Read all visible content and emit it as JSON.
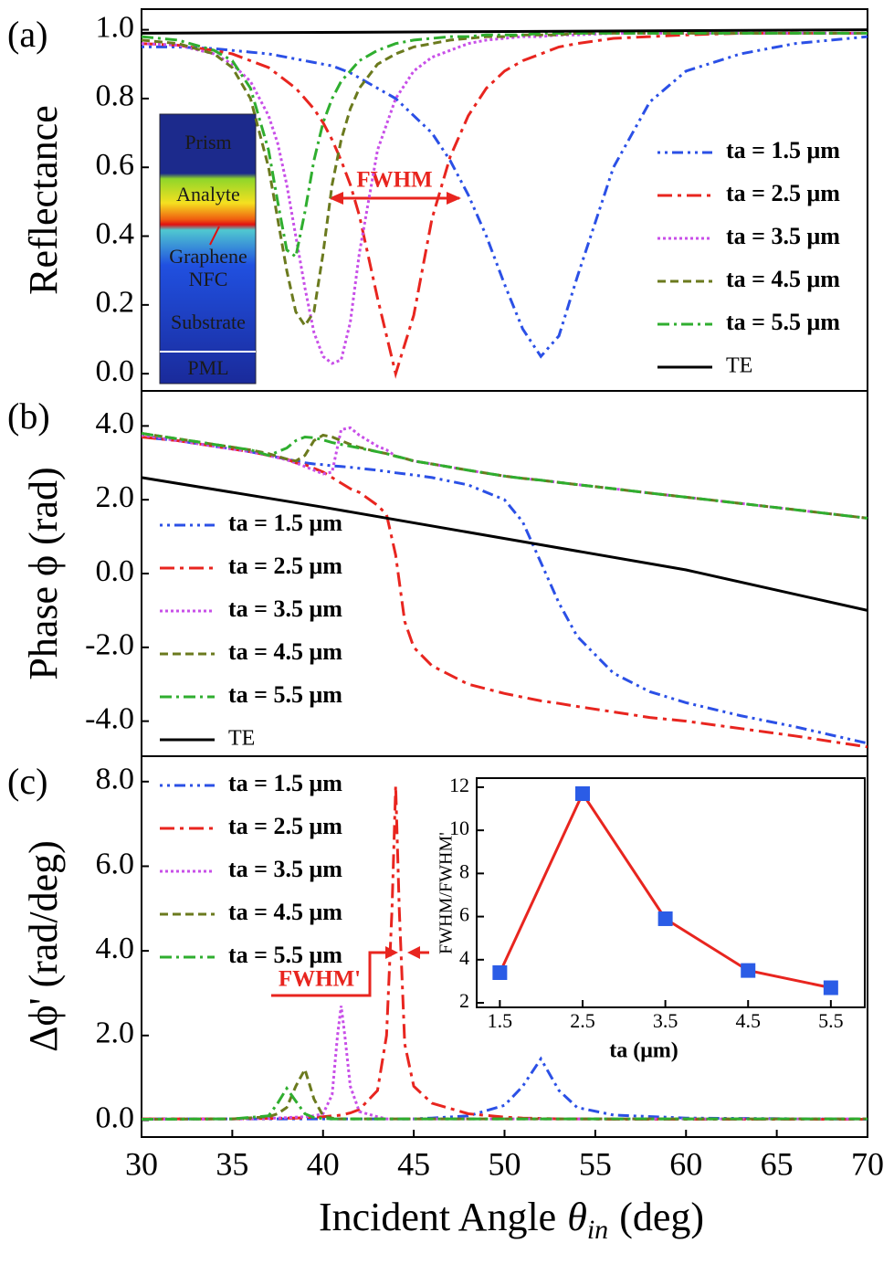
{
  "chart_data": [
    {
      "type": "line",
      "label": "(a)",
      "ylabel": "Reflectance",
      "legend": "right",
      "xlim": [
        30,
        70
      ],
      "ylim": [
        -0.05,
        1.06
      ],
      "yticks": [
        {
          "value": 0,
          "label": "0.0"
        },
        0.2,
        0.4,
        0.6,
        0.8,
        {
          "value": 1,
          "label": "1.0"
        }
      ],
      "annotations": [
        "FWHM"
      ],
      "layers": [
        "Prism",
        "Analyte",
        "Graphene",
        "NFC",
        "Substrate",
        "PML"
      ],
      "x": [
        30,
        32,
        34,
        35,
        36,
        37,
        37.5,
        38,
        38.5,
        39,
        39.5,
        40,
        40.5,
        41,
        41.5,
        42,
        43,
        44,
        45,
        46,
        47,
        48,
        49,
        50,
        51,
        52,
        53,
        54,
        56,
        58,
        60,
        63,
        66,
        70
      ],
      "series": [
        {
          "name": "ta = 1.5 μm",
          "color": "#2b50e6",
          "values": [
            0.95,
            0.95,
            0.945,
            0.94,
            0.935,
            0.93,
            0.925,
            0.92,
            0.915,
            0.91,
            0.905,
            0.9,
            0.895,
            0.885,
            0.875,
            0.86,
            0.83,
            0.8,
            0.75,
            0.7,
            0.62,
            0.52,
            0.4,
            0.26,
            0.13,
            0.05,
            0.11,
            0.28,
            0.6,
            0.79,
            0.88,
            0.93,
            0.96,
            0.98
          ]
        },
        {
          "name": "ta = 2.5 μm",
          "color": "#e8251f",
          "values": [
            0.96,
            0.955,
            0.94,
            0.93,
            0.91,
            0.89,
            0.87,
            0.85,
            0.83,
            0.8,
            0.77,
            0.73,
            0.68,
            0.62,
            0.55,
            0.46,
            0.22,
            0,
            0.17,
            0.45,
            0.63,
            0.75,
            0.83,
            0.88,
            0.91,
            0.93,
            0.95,
            0.96,
            0.975,
            0.98,
            0.985,
            0.99,
            0.99,
            0.99
          ]
        },
        {
          "name": "ta = 3.5 μm",
          "color": "#c84fe8",
          "values": [
            0.96,
            0.955,
            0.93,
            0.9,
            0.85,
            0.75,
            0.67,
            0.55,
            0.4,
            0.25,
            0.12,
            0.05,
            0.03,
            0.04,
            0.15,
            0.35,
            0.65,
            0.8,
            0.88,
            0.92,
            0.94,
            0.96,
            0.97,
            0.975,
            0.98,
            0.98,
            0.985,
            0.985,
            0.99,
            0.99,
            0.99,
            0.99,
            0.99,
            0.99
          ]
        },
        {
          "name": "ta = 4.5 μm",
          "color": "#6b7a1e",
          "values": [
            0.97,
            0.96,
            0.93,
            0.89,
            0.8,
            0.6,
            0.45,
            0.3,
            0.18,
            0.14,
            0.18,
            0.35,
            0.55,
            0.68,
            0.77,
            0.83,
            0.9,
            0.93,
            0.95,
            0.96,
            0.97,
            0.975,
            0.98,
            0.98,
            0.985,
            0.985,
            0.985,
            0.99,
            0.99,
            0.99,
            0.99,
            0.99,
            0.99,
            0.99
          ]
        },
        {
          "name": "ta = 5.5 μm",
          "color": "#2fae2f",
          "values": [
            0.98,
            0.97,
            0.94,
            0.91,
            0.83,
            0.65,
            0.5,
            0.36,
            0.34,
            0.47,
            0.62,
            0.73,
            0.8,
            0.85,
            0.88,
            0.91,
            0.94,
            0.96,
            0.97,
            0.975,
            0.98,
            0.98,
            0.985,
            0.985,
            0.985,
            0.99,
            0.99,
            0.99,
            0.99,
            0.99,
            0.99,
            0.99,
            0.99,
            0.99
          ]
        },
        {
          "name": "TE",
          "color": "#000000",
          "x": [
            30,
            70
          ],
          "values": [
            0.99,
            1.0
          ]
        }
      ]
    },
    {
      "type": "line",
      "label": "(b)",
      "ylabel": "Phase ϕ (rad)",
      "legend": "left",
      "xlim": [
        30,
        70
      ],
      "ylim": [
        -4.95,
        4.95
      ],
      "yticks": [
        {
          "value": -4,
          "label": "-4.0"
        },
        {
          "value": -2,
          "label": "-2.0"
        },
        {
          "value": 0,
          "label": "0.0"
        },
        {
          "value": 2,
          "label": "2.0"
        },
        {
          "value": 4,
          "label": "4.0"
        }
      ],
      "x": [
        30,
        32,
        34,
        36,
        37,
        38,
        38.5,
        39,
        39.5,
        40,
        40.5,
        41,
        41.5,
        42,
        43,
        43.5,
        44,
        44.5,
        45,
        46,
        48,
        50,
        51,
        52,
        53,
        54,
        56,
        58,
        60,
        63,
        66,
        70
      ],
      "series": [
        {
          "name": "ta = 1.5 μm",
          "color": "#2b50e6",
          "values": [
            3.7,
            3.6,
            3.45,
            3.3,
            3.2,
            3.1,
            3.05,
            3.0,
            2.97,
            2.95,
            2.92,
            2.9,
            2.88,
            2.85,
            2.8,
            2.77,
            2.73,
            2.7,
            2.67,
            2.6,
            2.4,
            2.0,
            1.4,
            0.3,
            -0.8,
            -1.7,
            -2.7,
            -3.2,
            -3.5,
            -3.85,
            -4.15,
            -4.6
          ]
        },
        {
          "name": "ta = 2.5 μm",
          "color": "#e8251f",
          "values": [
            3.7,
            3.6,
            3.45,
            3.3,
            3.2,
            3.1,
            3.0,
            2.95,
            2.85,
            2.75,
            2.6,
            2.45,
            2.3,
            2.2,
            1.85,
            1.6,
            0.5,
            -1.3,
            -2.0,
            -2.5,
            -3.0,
            -3.25,
            -3.35,
            -3.45,
            -3.52,
            -3.6,
            -3.75,
            -3.9,
            -4.0,
            -4.2,
            -4.4,
            -4.7
          ]
        },
        {
          "name": "ta = 3.5 μm",
          "color": "#c84fe8",
          "values": [
            3.75,
            3.6,
            3.45,
            3.3,
            3.2,
            3.08,
            3.0,
            2.9,
            2.8,
            2.7,
            2.75,
            3.9,
            3.95,
            3.75,
            3.45,
            3.35,
            3.18,
            3.12,
            3.05,
            2.97,
            2.8,
            2.64,
            2.58,
            2.53,
            2.47,
            2.41,
            2.3,
            2.18,
            2.07,
            1.9,
            1.73,
            1.5
          ]
        },
        {
          "name": "ta = 4.5 μm",
          "color": "#6b7a1e",
          "values": [
            3.8,
            3.65,
            3.5,
            3.35,
            3.25,
            3.1,
            3.05,
            3.2,
            3.6,
            3.75,
            3.7,
            3.6,
            3.5,
            3.42,
            3.3,
            3.25,
            3.18,
            3.12,
            3.05,
            2.97,
            2.8,
            2.64,
            2.58,
            2.53,
            2.47,
            2.41,
            2.3,
            2.18,
            2.07,
            1.9,
            1.73,
            1.5
          ]
        },
        {
          "name": "ta = 5.5 μm",
          "color": "#2fae2f",
          "values": [
            3.8,
            3.65,
            3.5,
            3.35,
            3.2,
            3.4,
            3.6,
            3.7,
            3.68,
            3.62,
            3.55,
            3.5,
            3.45,
            3.4,
            3.3,
            3.25,
            3.18,
            3.12,
            3.05,
            2.97,
            2.8,
            2.64,
            2.58,
            2.53,
            2.47,
            2.41,
            2.3,
            2.18,
            2.07,
            1.9,
            1.73,
            1.5
          ]
        },
        {
          "name": "TE",
          "color": "#000000",
          "x": [
            30,
            40,
            50,
            60,
            70
          ],
          "values": [
            2.6,
            1.8,
            0.95,
            0.1,
            -1.0
          ]
        }
      ]
    },
    {
      "type": "line",
      "label": "(c)",
      "ylabel": "Δϕ' (rad/deg)",
      "legend": "upper left",
      "xlabel": "Incident Angle",
      "xlabel_symbol": "θ",
      "xlabel_sub": "in",
      "xlabel_unit": "(deg)",
      "annotations": [
        "FWHM'"
      ],
      "xlim": [
        30,
        70
      ],
      "xticks": [
        30,
        35,
        40,
        45,
        50,
        55,
        60,
        65,
        70
      ],
      "ylim": [
        -0.4,
        8.6
      ],
      "yticks": [
        {
          "value": 0,
          "label": "0.0"
        },
        {
          "value": 2,
          "label": "2.0"
        },
        {
          "value": 4,
          "label": "4.0"
        },
        {
          "value": 6,
          "label": "6.0"
        },
        {
          "value": 8,
          "label": "8.0"
        }
      ],
      "x": [
        30,
        35,
        37,
        37.5,
        38,
        38.5,
        39,
        39.5,
        40,
        40.5,
        40.8,
        41,
        41.2,
        41.5,
        42,
        43,
        43.5,
        43.8,
        44,
        44.2,
        44.5,
        45,
        46,
        48,
        50,
        51,
        52,
        53,
        54,
        56,
        60,
        70
      ],
      "series": [
        {
          "name": "ta = 1.5 μm",
          "color": "#2b50e6",
          "values": [
            0.03,
            0.03,
            0.03,
            0.03,
            0.03,
            0.03,
            0.03,
            0.03,
            0.03,
            0.03,
            0.03,
            0.03,
            0.03,
            0.03,
            0.03,
            0.03,
            0.03,
            0.03,
            0.03,
            0.03,
            0.03,
            0.03,
            0.05,
            0.1,
            0.35,
            0.8,
            1.45,
            0.7,
            0.3,
            0.12,
            0.05,
            0.02
          ]
        },
        {
          "name": "ta = 2.5 μm",
          "color": "#e8251f",
          "values": [
            0.03,
            0.03,
            0.04,
            0.04,
            0.05,
            0.05,
            0.06,
            0.07,
            0.08,
            0.1,
            0.11,
            0.12,
            0.14,
            0.17,
            0.25,
            0.7,
            2.0,
            5.0,
            7.9,
            5.0,
            1.8,
            0.8,
            0.4,
            0.15,
            0.07,
            0.05,
            0.04,
            0.03,
            0.03,
            0.02,
            0.02,
            0.02
          ]
        },
        {
          "name": "ta = 3.5 μm",
          "color": "#c84fe8",
          "values": [
            0.02,
            0.03,
            0.04,
            0.05,
            0.06,
            0.07,
            0.08,
            0.1,
            0.15,
            0.6,
            2.0,
            2.7,
            2.0,
            0.8,
            0.2,
            0.08,
            0.03,
            0.03,
            0.03,
            0.03,
            0.03,
            0.03,
            0.03,
            0.03,
            0.03,
            0.03,
            0.03,
            0.03,
            0.03,
            0.03,
            0.03,
            0.03
          ]
        },
        {
          "name": "ta = 4.5 μm",
          "color": "#6b7a1e",
          "values": [
            0.02,
            0.03,
            0.08,
            0.15,
            0.3,
            0.8,
            1.2,
            0.5,
            0.1,
            0.05,
            0.03,
            0.03,
            0.03,
            0.03,
            0.03,
            0.03,
            0.03,
            0.03,
            0.03,
            0.03,
            0.03,
            0.03,
            0.03,
            0.03,
            0.03,
            0.03,
            0.03,
            0.03,
            0.03,
            0.03,
            0.03,
            0.03
          ]
        },
        {
          "name": "ta = 5.5 μm",
          "color": "#2fae2f",
          "values": [
            0.02,
            0.03,
            0.1,
            0.4,
            0.75,
            0.45,
            0.15,
            0.06,
            0.04,
            0.03,
            0.03,
            0.03,
            0.03,
            0.03,
            0.03,
            0.03,
            0.03,
            0.03,
            0.03,
            0.03,
            0.03,
            0.03,
            0.03,
            0.03,
            0.03,
            0.03,
            0.03,
            0.03,
            0.03,
            0.03,
            0.03,
            0.03
          ]
        }
      ]
    },
    {
      "type": "line",
      "marker": "square",
      "color": "#e8251f",
      "marker_color": "#2b5ce6",
      "xlabel": "ta (μm)",
      "ylabel": "FWHM/FWHM'",
      "xlim": [
        1.22,
        5.91
      ],
      "xticks": [
        1.5,
        2.5,
        3.5,
        4.5,
        5.5
      ],
      "ylim": [
        1.79,
        12.42
      ],
      "yticks": [
        2,
        4,
        6,
        8,
        10,
        12
      ],
      "x": [
        1.5,
        2.5,
        3.5,
        4.5,
        5.5
      ],
      "values": [
        3.4,
        11.7,
        5.9,
        3.5,
        2.7
      ]
    }
  ]
}
